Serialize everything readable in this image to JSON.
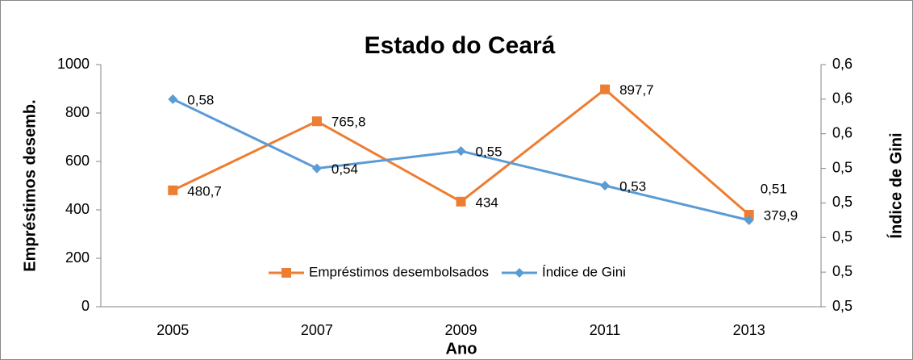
{
  "chart_data": {
    "type": "line",
    "title": "Estado do Ceará",
    "x_label": "Ano",
    "y_label": "Empréstimos desemb.",
    "y2_label": "Índice de Gini",
    "categories": [
      "2005",
      "2007",
      "2009",
      "2011",
      "2013"
    ],
    "series": [
      {
        "name": "Empréstimos desembolsados",
        "color": "#ed7d31",
        "marker": "square",
        "values": [
          480.7,
          765.8,
          434,
          897.7,
          379.9
        ],
        "value_labels": [
          "480,7",
          "765,8",
          "434",
          "897,7",
          "379,9"
        ]
      },
      {
        "name": "Índice de Gini",
        "color": "#5b9bd5",
        "marker": "diamond",
        "axis": "y2",
        "values": [
          0.58,
          0.54,
          0.55,
          0.53,
          0.51
        ],
        "value_labels": [
          "0,58",
          "0,54",
          "0,55",
          "0,53",
          "0,51"
        ]
      }
    ],
    "ylim": [
      0,
      1000
    ],
    "yticks": [
      0,
      200,
      400,
      600,
      800,
      1000
    ],
    "y2lim": [
      0.46,
      0.6
    ],
    "y2ticks": [
      {
        "value": 0.46,
        "label": "0,5"
      },
      {
        "value": 0.48,
        "label": "0,5"
      },
      {
        "value": 0.5,
        "label": "0,5"
      },
      {
        "value": 0.52,
        "label": "0,5"
      },
      {
        "value": 0.54,
        "label": "0,5"
      },
      {
        "value": 0.56,
        "label": "0,6"
      },
      {
        "value": 0.58,
        "label": "0,6"
      },
      {
        "value": 0.6,
        "label": "0,6"
      }
    ],
    "grid": false,
    "legend": "bottom"
  }
}
